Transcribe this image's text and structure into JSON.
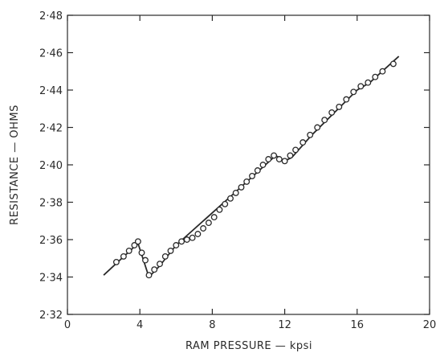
{
  "chart_data": {
    "type": "line",
    "title": "",
    "xlabel": "RAM  PRESSURE  —  kpsi",
    "ylabel": "RESISTANCE  —  OHMS",
    "xlim": [
      0,
      20
    ],
    "ylim": [
      2.32,
      2.48
    ],
    "x_ticks": [
      0,
      4,
      8,
      12,
      16,
      20
    ],
    "y_ticks": [
      2.32,
      2.34,
      2.36,
      2.38,
      2.4,
      2.42,
      2.44,
      2.46,
      2.48
    ],
    "x_tick_labels": [
      "0",
      "4",
      "8",
      "12",
      "16",
      "20"
    ],
    "y_tick_labels": [
      "2·32",
      "2·34",
      "2·36",
      "2·38",
      "2·40",
      "2·42",
      "2·44",
      "2·46",
      "2·48"
    ],
    "grid": false,
    "series": [
      {
        "style": "markers",
        "x": [
          2.7,
          3.1,
          3.4,
          3.7,
          3.9,
          4.1,
          4.3,
          4.5,
          4.8,
          5.1,
          5.4,
          5.7,
          6.0,
          6.3,
          6.6,
          6.9,
          7.2,
          7.5,
          7.8,
          8.1,
          8.4,
          8.7,
          9.0,
          9.3,
          9.6,
          9.9,
          10.2,
          10.5,
          10.8,
          11.1,
          11.4,
          11.7,
          12.0,
          12.3,
          12.6,
          13.0,
          13.4,
          13.8,
          14.2,
          14.6,
          15.0,
          15.4,
          15.8,
          16.2,
          16.6,
          17.0,
          17.4,
          18.0
        ],
        "y": [
          2.348,
          2.351,
          2.354,
          2.357,
          2.359,
          2.353,
          2.349,
          2.341,
          2.344,
          2.347,
          2.351,
          2.354,
          2.357,
          2.359,
          2.36,
          2.361,
          2.363,
          2.366,
          2.369,
          2.372,
          2.376,
          2.379,
          2.382,
          2.385,
          2.388,
          2.391,
          2.394,
          2.397,
          2.4,
          2.403,
          2.405,
          2.403,
          2.402,
          2.405,
          2.408,
          2.412,
          2.416,
          2.42,
          2.424,
          2.428,
          2.431,
          2.435,
          2.439,
          2.442,
          2.444,
          2.447,
          2.45,
          2.454
        ]
      },
      {
        "style": "line",
        "x": [
          2.0,
          3.9,
          4.2,
          4.5,
          5.1,
          6.0,
          9.0,
          11.5,
          12.0,
          12.4,
          13.5,
          16.0,
          16.7,
          18.3
        ],
        "y": [
          2.341,
          2.358,
          2.349,
          2.34,
          2.346,
          2.357,
          2.383,
          2.405,
          2.402,
          2.404,
          2.416,
          2.44,
          2.444,
          2.458
        ]
      }
    ]
  }
}
